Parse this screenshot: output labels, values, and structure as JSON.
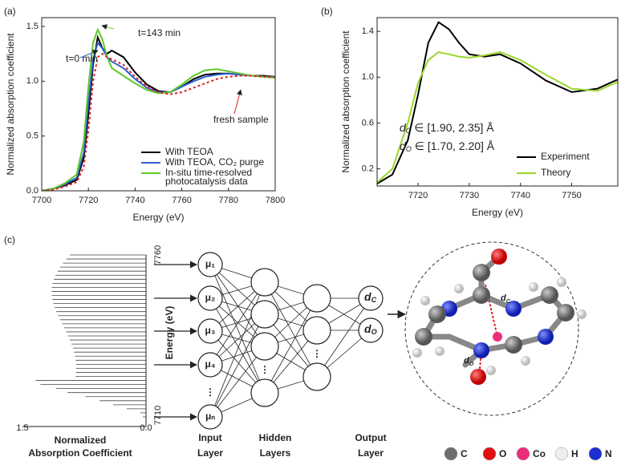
{
  "chart_data": [
    {
      "type": "line",
      "label": "(a)",
      "x_label": "Energy (eV)",
      "y_label": "Normalized absorption coefficient",
      "x": [
        7700,
        7705,
        7710,
        7715,
        7718,
        7720,
        7722,
        7724,
        7726,
        7728,
        7730,
        7735,
        7740,
        7745,
        7750,
        7755,
        7760,
        7765,
        7770,
        7775,
        7780,
        7785,
        7790,
        7795,
        7800
      ],
      "series": [
        {
          "name": "With TEOA",
          "color": "#000000",
          "values": [
            0,
            0.02,
            0.05,
            0.1,
            0.3,
            0.7,
            1.15,
            1.4,
            1.3,
            1.25,
            1.28,
            1.22,
            1.08,
            0.97,
            0.91,
            0.9,
            0.95,
            1.02,
            1.06,
            1.07,
            1.07,
            1.06,
            1.05,
            1.05,
            1.04
          ]
        },
        {
          "name": "With TEOA, CO₂ purge",
          "color": "#2f5fd0",
          "values": [
            0,
            0.02,
            0.06,
            0.12,
            0.35,
            0.8,
            1.2,
            1.35,
            1.3,
            1.22,
            1.18,
            1.12,
            1.02,
            0.94,
            0.9,
            0.9,
            0.95,
            1.0,
            1.04,
            1.06,
            1.07,
            1.06,
            1.05,
            1.04,
            1.04
          ]
        },
        {
          "name": "In-situ time-resolved photocatalysis data",
          "color": "#5fc82a",
          "values": [
            0,
            0.02,
            0.07,
            0.15,
            0.45,
            0.95,
            1.35,
            1.47,
            1.38,
            1.22,
            1.12,
            1.05,
            0.98,
            0.92,
            0.89,
            0.9,
            0.97,
            1.05,
            1.1,
            1.11,
            1.09,
            1.07,
            1.05,
            1.04,
            1.03
          ]
        },
        {
          "color": "#e02020",
          "dash": true,
          "values": [
            0,
            0.01,
            0.04,
            0.08,
            0.22,
            0.55,
            1.0,
            1.22,
            1.25,
            1.22,
            1.2,
            1.15,
            1.04,
            0.95,
            0.9,
            0.88,
            0.9,
            0.94,
            0.98,
            1.02,
            1.04,
            1.05,
            1.05,
            1.04,
            1.04
          ]
        }
      ],
      "annotations": [
        {
          "text": "t=143 min",
          "color": "#7ed321"
        },
        {
          "text": "t=0 min",
          "color": "#2f5fd0"
        },
        {
          "text": "fresh sample",
          "color": "#e02020"
        }
      ],
      "xlim": [
        7700,
        7800
      ],
      "xticks": [
        7700,
        7720,
        7740,
        7760,
        7780,
        7800
      ],
      "ylim": [
        0,
        1.58
      ],
      "yticks": [
        {
          "value": 0,
          "label": "0.0"
        },
        0.5,
        {
          "value": 1,
          "label": "1.0"
        },
        1.5
      ],
      "legend": "lower right"
    },
    {
      "type": "line",
      "label": "(b)",
      "x_label": "Energy (eV)",
      "y_label": "Normalized absorption coefficient",
      "x": [
        7712,
        7715,
        7718,
        7720,
        7722,
        7724,
        7726,
        7728,
        7730,
        7733,
        7736,
        7740,
        7745,
        7750,
        7755,
        7759
      ],
      "series": [
        {
          "name": "Experiment",
          "color": "#000000",
          "values": [
            0.07,
            0.15,
            0.45,
            0.85,
            1.3,
            1.48,
            1.42,
            1.3,
            1.2,
            1.18,
            1.2,
            1.12,
            0.97,
            0.87,
            0.9,
            0.98
          ]
        },
        {
          "name": "Theory",
          "color": "#9ad62a",
          "values": [
            0.08,
            0.2,
            0.6,
            0.95,
            1.15,
            1.22,
            1.2,
            1.18,
            1.17,
            1.19,
            1.22,
            1.15,
            1.02,
            0.9,
            0.88,
            0.96
          ]
        }
      ],
      "annotations": [
        {
          "symbol": "d",
          "subscript": "C",
          "text": " ∈ [1.90, 2.35] Å"
        },
        {
          "symbol": "d",
          "subscript": "O",
          "text": " ∈ [1.70, 2.20] Å"
        }
      ],
      "xlim": [
        7712,
        7759
      ],
      "xticks": [
        7720,
        7730,
        7740,
        7750
      ],
      "ylim": [
        0.05,
        1.52
      ],
      "yticks": [
        0.2,
        0.6,
        {
          "value": 1,
          "label": "1.0"
        },
        1.4
      ],
      "legend": "lower right"
    }
  ],
  "diagram": {
    "label": "(c)",
    "spectrum": {
      "x_title": [
        "Normalized",
        "Absorption Coefficient"
      ],
      "x_tick_labels": [
        "1.5",
        "0.0"
      ],
      "y_title": "Energy (eV)",
      "y_tick_labels": [
        "7760",
        "7710"
      ]
    },
    "ellipsis": "⋮",
    "input": {
      "title": [
        "Input",
        "Layer"
      ],
      "nodes": [
        "μ₁",
        "μ₂",
        "μ₃",
        "μ₄",
        "μₙ"
      ]
    },
    "hidden": {
      "title": [
        "Hidden",
        "Layers"
      ]
    },
    "output": {
      "title": [
        "Output",
        "Layer"
      ],
      "nodes": [
        {
          "symbol": "d",
          "subscript": "C"
        },
        {
          "symbol": "d",
          "subscript": "O"
        }
      ]
    },
    "elements": [
      {
        "name": "C",
        "color": "#6e6e6e"
      },
      {
        "name": "O",
        "color": "#e01010"
      },
      {
        "name": "Co",
        "color": "#ee2d7a"
      },
      {
        "name": "H",
        "color": "#eeeeee"
      },
      {
        "name": "N",
        "color": "#1a2fd0"
      }
    ]
  }
}
